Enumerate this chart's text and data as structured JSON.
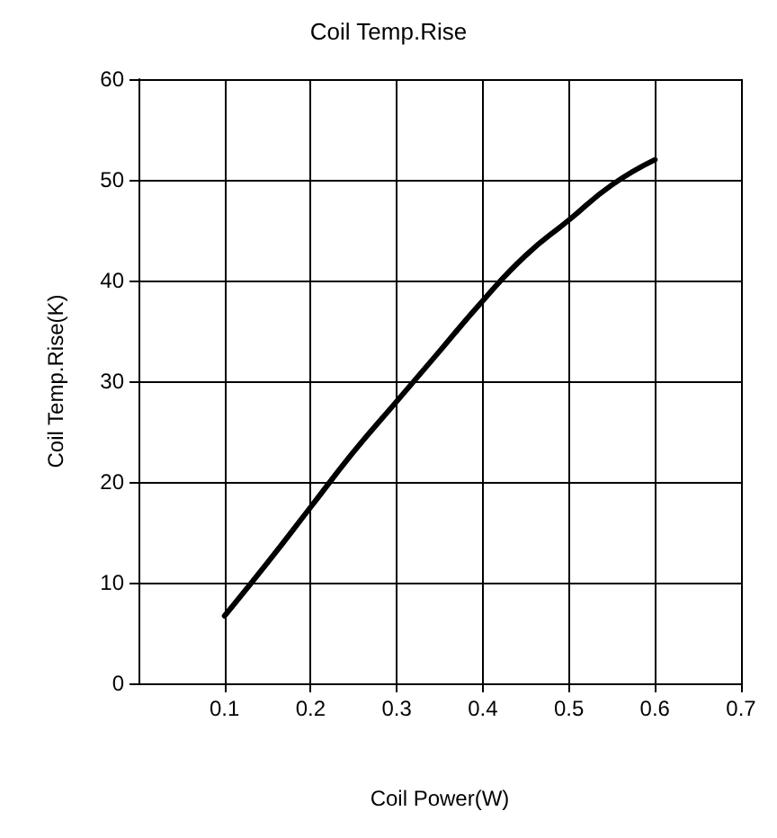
{
  "chart_data": {
    "type": "line",
    "title": "Coil Temp.Rise",
    "xlabel": "Coil Power(W)",
    "ylabel": "Coil Temp.Rise(K)",
    "x": [
      0.1,
      0.15,
      0.2,
      0.25,
      0.3,
      0.35,
      0.4,
      0.45,
      0.5,
      0.55,
      0.6
    ],
    "series": [
      {
        "color": "#000000",
        "values": [
          6.7,
          12,
          17.5,
          23,
          28,
          33,
          38,
          42.5,
          46,
          49.5,
          52
        ]
      }
    ],
    "xlim": [
      0,
      0.7
    ],
    "xticks": [
      0.1,
      0.2,
      0.3,
      0.4,
      0.5,
      0.6,
      0.7
    ],
    "ylim": [
      0,
      60
    ],
    "yticks": [
      0,
      10,
      20,
      30,
      40,
      50,
      60
    ],
    "grid": true,
    "marker": "none",
    "line_style": "solid"
  }
}
